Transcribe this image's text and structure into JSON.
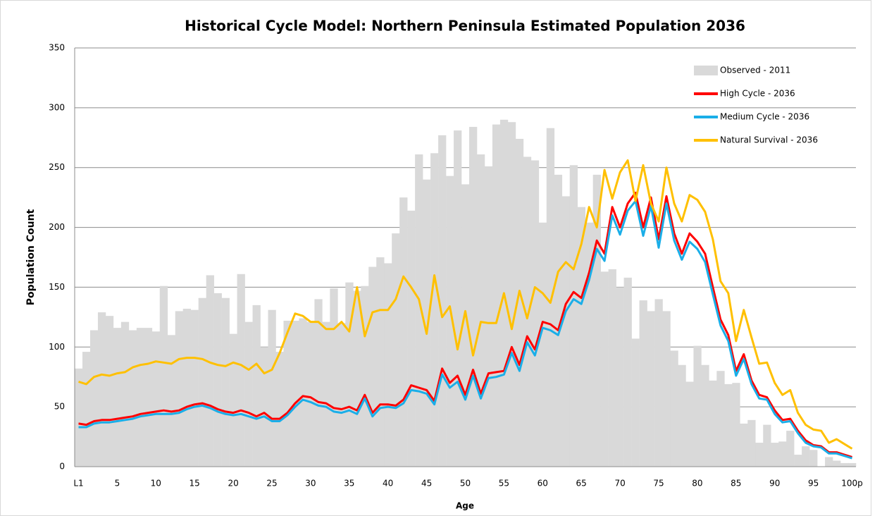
{
  "chart_data": {
    "type": "bar-line",
    "title": "Historical Cycle Model: Northern Peninsula Estimated Population 2036",
    "x_label": "Age",
    "y_label": "Population Count",
    "categories": [
      "L1",
      null,
      null,
      null,
      null,
      "5",
      null,
      null,
      null,
      null,
      "10",
      null,
      null,
      null,
      null,
      "15",
      null,
      null,
      null,
      null,
      "20",
      null,
      null,
      null,
      null,
      "25",
      null,
      null,
      null,
      null,
      "30",
      null,
      null,
      null,
      null,
      "35",
      null,
      null,
      null,
      null,
      "40",
      null,
      null,
      null,
      null,
      "45",
      null,
      null,
      null,
      null,
      "50",
      null,
      null,
      null,
      null,
      "55",
      null,
      null,
      null,
      null,
      "60",
      null,
      null,
      null,
      null,
      "65",
      null,
      null,
      null,
      null,
      "70",
      null,
      null,
      null,
      null,
      "75",
      null,
      null,
      null,
      null,
      "80",
      null,
      null,
      null,
      null,
      "85",
      null,
      null,
      null,
      null,
      "90",
      null,
      null,
      null,
      null,
      "95",
      null,
      null,
      null,
      null,
      "100p"
    ],
    "series": [
      {
        "name": "Observed - 2011",
        "kind": "bar",
        "color": "#d9d9d9",
        "values": [
          82,
          96,
          114,
          129,
          126,
          116,
          121,
          114,
          116,
          116,
          113,
          151,
          110,
          130,
          132,
          131,
          141,
          160,
          145,
          141,
          111,
          161,
          121,
          135,
          100,
          131,
          96,
          122,
          122,
          124,
          121,
          140,
          121,
          149,
          120,
          154,
          147,
          151,
          167,
          175,
          170,
          195,
          225,
          214,
          261,
          240,
          262,
          277,
          243,
          281,
          236,
          284,
          261,
          251,
          286,
          290,
          288,
          274,
          259,
          256,
          204,
          283,
          244,
          226,
          252,
          217,
          204,
          244,
          163,
          165,
          150,
          158,
          107,
          139,
          130,
          140,
          130,
          97,
          85,
          71,
          101,
          85,
          72,
          80,
          69,
          70,
          36,
          39,
          20,
          35,
          20,
          21,
          30,
          10,
          17,
          14,
          0,
          8,
          5,
          3,
          3
        ]
      },
      {
        "name": "High Cycle - 2036",
        "kind": "line",
        "color": "#ff0000",
        "values": [
          36,
          35,
          38,
          39,
          39,
          40,
          41,
          42,
          44,
          45,
          46,
          47,
          46,
          47,
          50,
          52,
          53,
          51,
          48,
          46,
          45,
          47,
          45,
          42,
          45,
          40,
          40,
          45,
          53,
          59,
          58,
          54,
          53,
          49,
          48,
          50,
          47,
          60,
          45,
          52,
          52,
          51,
          56,
          68,
          66,
          64,
          55,
          82,
          70,
          76,
          60,
          81,
          61,
          78,
          79,
          80,
          100,
          85,
          109,
          98,
          121,
          119,
          114,
          136,
          146,
          141,
          162,
          189,
          178,
          217,
          200,
          220,
          229,
          200,
          225,
          190,
          226,
          195,
          178,
          195,
          188,
          178,
          150,
          123,
          110,
          80,
          94,
          72,
          60,
          58,
          47,
          39,
          40,
          30,
          22,
          18,
          17,
          12,
          12,
          10,
          8
        ]
      },
      {
        "name": "Medium Cycle - 2036",
        "kind": "line",
        "color": "#1aaee8",
        "values": [
          33,
          33,
          36,
          37,
          37,
          38,
          39,
          40,
          42,
          43,
          44,
          44,
          44,
          45,
          48,
          50,
          51,
          49,
          46,
          44,
          43,
          44,
          42,
          40,
          42,
          38,
          38,
          43,
          50,
          56,
          54,
          51,
          50,
          46,
          45,
          47,
          44,
          57,
          42,
          49,
          50,
          49,
          53,
          64,
          63,
          61,
          52,
          77,
          66,
          71,
          56,
          76,
          57,
          74,
          75,
          77,
          95,
          80,
          104,
          93,
          116,
          114,
          110,
          130,
          140,
          136,
          156,
          182,
          172,
          210,
          194,
          214,
          222,
          193,
          218,
          183,
          220,
          189,
          173,
          188,
          182,
          171,
          144,
          118,
          105,
          76,
          90,
          69,
          57,
          56,
          44,
          37,
          38,
          28,
          20,
          17,
          16,
          11,
          11,
          9,
          7
        ]
      },
      {
        "name": "Natural Survival - 2036",
        "kind": "line",
        "color": "#ffc000",
        "values": [
          71,
          69,
          75,
          77,
          76,
          78,
          79,
          83,
          85,
          86,
          88,
          87,
          86,
          90,
          91,
          91,
          90,
          87,
          85,
          84,
          87,
          85,
          81,
          86,
          78,
          81,
          95,
          112,
          128,
          126,
          121,
          121,
          115,
          115,
          121,
          113,
          150,
          109,
          129,
          131,
          131,
          140,
          159,
          150,
          140,
          111,
          160,
          125,
          134,
          98,
          130,
          93,
          121,
          120,
          120,
          145,
          115,
          147,
          124,
          150,
          145,
          137,
          163,
          171,
          165,
          186,
          217,
          200,
          248,
          224,
          246,
          256,
          222,
          252,
          220,
          205,
          250,
          220,
          205,
          227,
          223,
          213,
          190,
          155,
          145,
          105,
          131,
          108,
          86,
          87,
          70,
          60,
          64,
          45,
          35,
          31,
          30,
          20,
          23,
          19,
          15
        ]
      }
    ],
    "ylim": [
      0,
      350
    ],
    "yticks": [
      0,
      50,
      100,
      150,
      200,
      250,
      300,
      350
    ],
    "grid": true,
    "legend": "top-right"
  }
}
